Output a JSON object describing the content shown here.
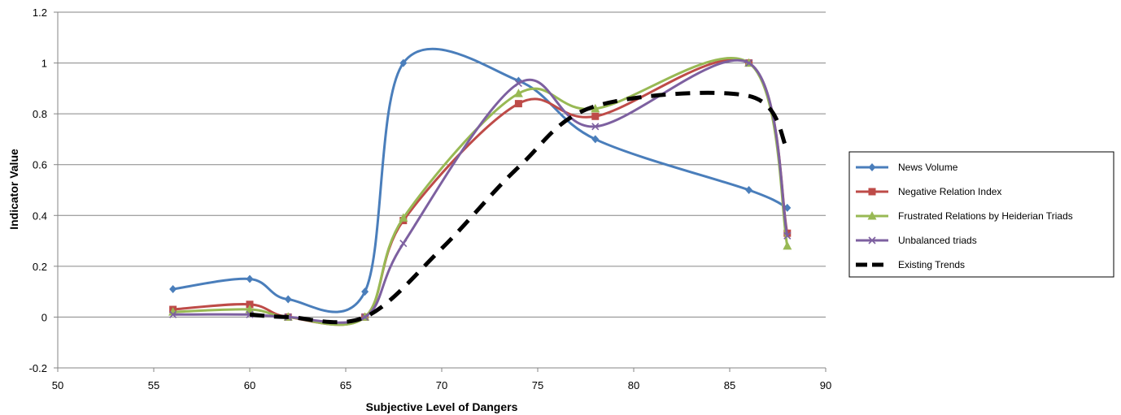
{
  "chart_data": {
    "type": "line",
    "xlabel": "Subjective Level of Dangers",
    "ylabel": "Indicator Value",
    "xlim": [
      50,
      90
    ],
    "ylim": [
      -0.2,
      1.2
    ],
    "xticks": [
      50,
      55,
      60,
      65,
      70,
      75,
      80,
      85,
      90
    ],
    "yticks": [
      -0.2,
      0,
      0.2,
      0.4,
      0.6,
      0.8,
      1,
      1.2
    ],
    "ytick_labels": [
      "-0.2",
      "0",
      "0.2",
      "0.4",
      "0.6",
      "0.8",
      "1",
      "1.2"
    ],
    "grid": "horizontal",
    "legend_position": "right",
    "series": [
      {
        "name": "News Volume",
        "color": "#4a7ebb",
        "marker": "diamond",
        "dashed": false,
        "x": [
          56,
          60,
          62,
          66,
          68,
          74,
          78,
          86,
          88
        ],
        "y": [
          0.11,
          0.15,
          0.07,
          0.1,
          1.0,
          0.93,
          0.7,
          0.5,
          0.43
        ]
      },
      {
        "name": "Negative Relation Index",
        "color": "#be4b48",
        "marker": "square",
        "dashed": false,
        "x": [
          56,
          60,
          62,
          66,
          68,
          74,
          78,
          86,
          88
        ],
        "y": [
          0.03,
          0.05,
          0.0,
          0.0,
          0.38,
          0.84,
          0.79,
          1.0,
          0.33
        ]
      },
      {
        "name": "Frustrated Relations by Heiderian Triads",
        "color": "#98b954",
        "marker": "triangle",
        "dashed": false,
        "x": [
          56,
          60,
          62,
          66,
          68,
          74,
          78,
          86,
          88
        ],
        "y": [
          0.02,
          0.03,
          0.0,
          0.0,
          0.39,
          0.88,
          0.82,
          1.0,
          0.28
        ]
      },
      {
        "name": "Unbalanced triads",
        "color": "#7d60a0",
        "marker": "x",
        "dashed": false,
        "x": [
          56,
          60,
          62,
          66,
          68,
          74,
          78,
          86,
          88
        ],
        "y": [
          0.01,
          0.01,
          0.0,
          0.0,
          0.29,
          0.92,
          0.75,
          1.0,
          0.32
        ]
      },
      {
        "name": "Existing Trends",
        "color": "#000000",
        "marker": "none",
        "dashed": true,
        "x": [
          60,
          62,
          66,
          70,
          74,
          78,
          86,
          88
        ],
        "y": [
          0.01,
          0.0,
          0.0,
          0.27,
          0.59,
          0.83,
          0.87,
          0.66
        ]
      }
    ]
  }
}
